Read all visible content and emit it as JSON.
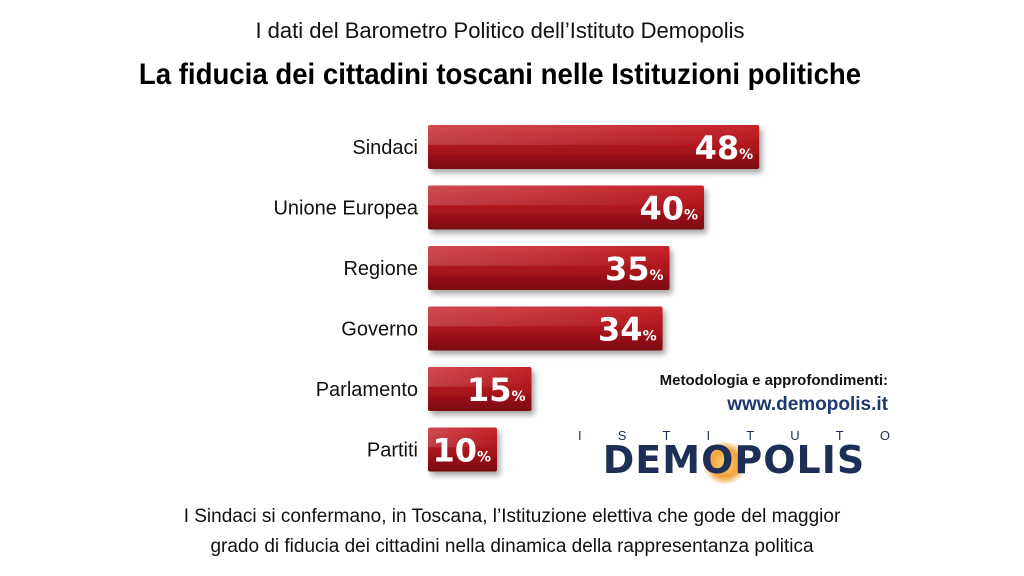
{
  "supertitle": "I dati del Barometro Politico dell’Istituto Demopolis",
  "title": "La fiducia dei cittadini toscani nelle Istituzioni politiche",
  "chart_data": {
    "type": "bar",
    "orientation": "horizontal",
    "categories": [
      "Sindaci",
      "Unione Europea",
      "Regione",
      "Governo",
      "Parlamento",
      "Partiti"
    ],
    "values": [
      48,
      40,
      35,
      34,
      15,
      10
    ],
    "unit": "%",
    "bar_color": "#b5141c"
  },
  "methodology": {
    "label": "Metodologia e approfondimenti:",
    "url": "www.demopolis.it"
  },
  "logo": {
    "subtitle": [
      "I",
      "S",
      "T",
      "I",
      "T",
      "U",
      "T",
      "O"
    ],
    "name": "DEMOPOLIS"
  },
  "caption": {
    "line1": "I Sindaci si confermano, in Toscana, l’Istituzione elettiva che gode del maggior",
    "line2": "grado di fiducia dei cittadini nella dinamica della rappresentanza politica"
  }
}
